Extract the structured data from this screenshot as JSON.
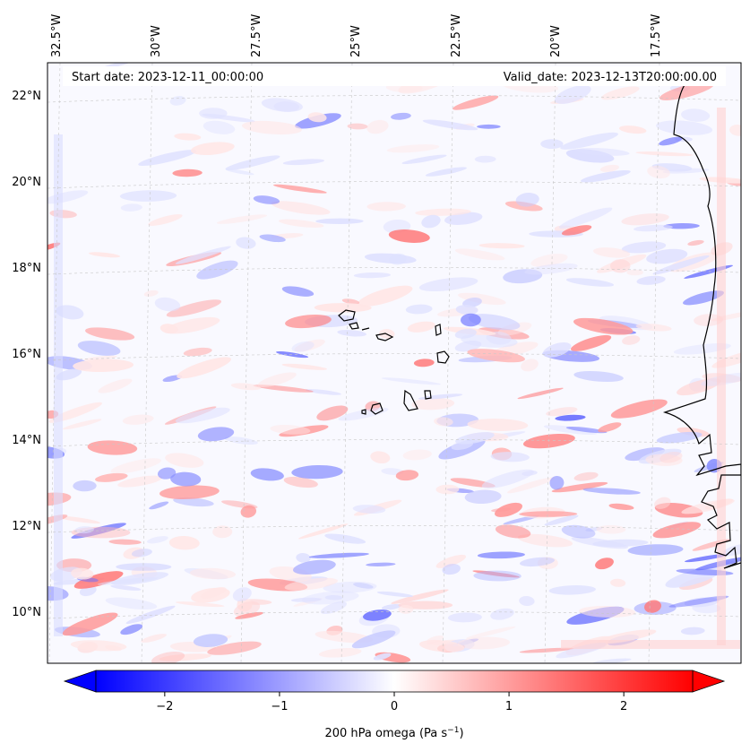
{
  "map": {
    "start_label": "Start date: 2023-12-11_00:00:00",
    "valid_label": "Valid_date: 2023-12-13T20:00:00.00",
    "lon_labels": [
      "32.5°W",
      "30°W",
      "27.5°W",
      "25°W",
      "22.5°W",
      "20°W",
      "17.5°W"
    ],
    "lat_labels": [
      "22°N",
      "20°N",
      "18°N",
      "16°N",
      "14°N",
      "12°N",
      "10°N"
    ],
    "field": "200 hPa omega",
    "gridlines": true
  },
  "colorbar": {
    "label_prefix": "200 hPa omega (Pa s",
    "label_exponent": "−1",
    "label_suffix": ")",
    "ticks": [
      "−2",
      "−1",
      "0",
      "1",
      "2"
    ],
    "tick_values": [
      -2,
      -1,
      0,
      1,
      2
    ],
    "range": [
      -2.6,
      2.6
    ],
    "extend": "both",
    "colormap": "bwr",
    "low_color": "#0000ff",
    "mid_color": "#ffffff",
    "high_color": "#ff0000"
  }
}
